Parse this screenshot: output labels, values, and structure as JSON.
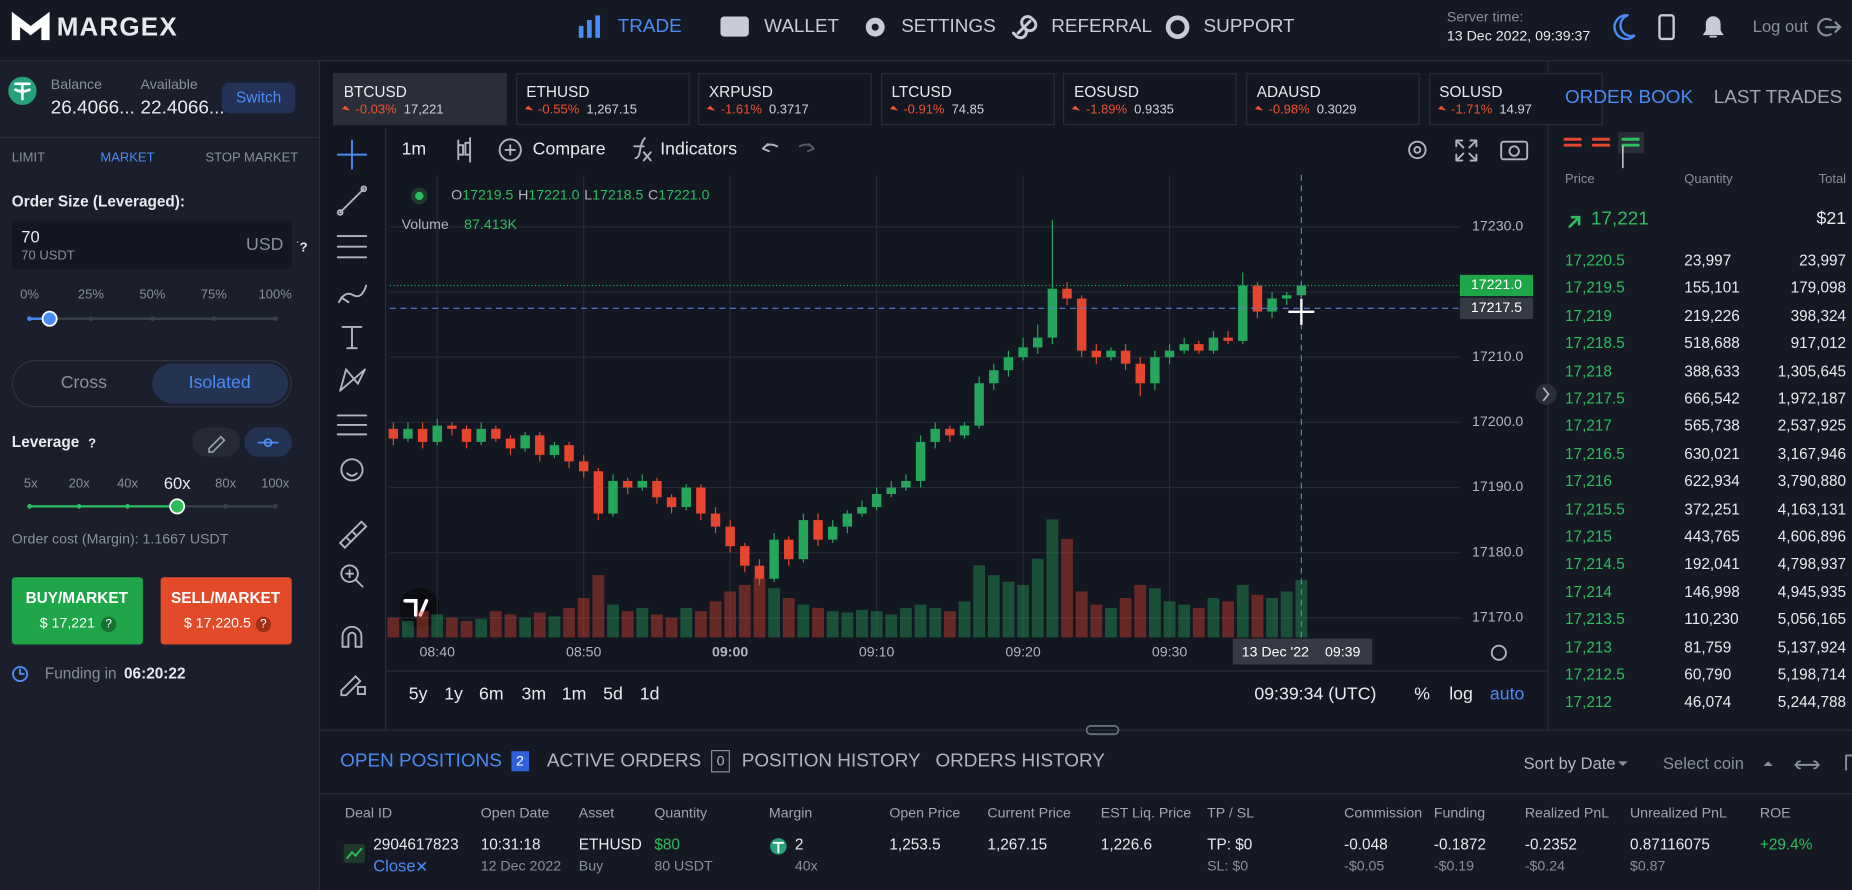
{
  "header": {
    "logo": "MARGEX",
    "nav": [
      "TRADE",
      "WALLET",
      "SETTINGS",
      "REFERRAL",
      "SUPPORT"
    ],
    "server_time_label": "Server time:",
    "server_time": "13 Dec 2022, 09:39:37",
    "logout": "Log out"
  },
  "sidebar": {
    "balance_label": "Balance",
    "balance": "26.4066...",
    "available_label": "Available",
    "available": "22.4066...",
    "switch": "Switch",
    "order_tabs": [
      "LIMIT",
      "MARKET",
      "STOP MARKET"
    ],
    "order_size_label": "Order Size (Leveraged):",
    "order_size": "70",
    "order_size_sub": "70 USDT",
    "currency": "USD",
    "help": "?",
    "size_marks": [
      "0%",
      "25%",
      "50%",
      "75%",
      "100%"
    ],
    "margin_modes": [
      "Cross",
      "Isolated"
    ],
    "leverage_label": "Leverage",
    "leverage_marks": [
      "5x",
      "20x",
      "40x",
      "60x",
      "80x",
      "100x"
    ],
    "order_cost": "Order cost (Margin): 1.1667 USDT",
    "buy_label": "BUY/MARKET",
    "buy_price": "$ 17,221",
    "sell_label": "SELL/MARKET",
    "sell_price": "$ 17,220.5",
    "funding_label": "Funding in",
    "funding_time": "06:20:22"
  },
  "tickers": [
    {
      "symbol": "BTCUSD",
      "change": "-0.03%",
      "price": "17,221"
    },
    {
      "symbol": "ETHUSD",
      "change": "-0.55%",
      "price": "1,267.15"
    },
    {
      "symbol": "XRPUSD",
      "change": "-1.61%",
      "price": "0.3717"
    },
    {
      "symbol": "LTCUSD",
      "change": "-0.91%",
      "price": "74.85"
    },
    {
      "symbol": "EOSUSD",
      "change": "-1.89%",
      "price": "0.9335"
    },
    {
      "symbol": "ADAUSD",
      "change": "-0.98%",
      "price": "0.3029"
    },
    {
      "symbol": "SOLUSD",
      "change": "-1.71%",
      "price": "14.97"
    }
  ],
  "toolbar": {
    "interval": "1m",
    "compare": "Compare",
    "indicators": "Indicators"
  },
  "chart_data": {
    "type": "candlestick",
    "x": [
      "08:37",
      "08:38",
      "08:39",
      "08:40",
      "08:41",
      "08:42",
      "08:43",
      "08:44",
      "08:45",
      "08:46",
      "08:47",
      "08:48",
      "08:49",
      "08:50",
      "08:51",
      "08:52",
      "08:53",
      "08:54",
      "08:55",
      "08:56",
      "08:57",
      "08:58",
      "08:59",
      "09:00",
      "09:01",
      "09:02",
      "09:03",
      "09:04",
      "09:05",
      "09:06",
      "09:07",
      "09:08",
      "09:09",
      "09:10",
      "09:11",
      "09:12",
      "09:13",
      "09:14",
      "09:15",
      "09:16",
      "09:17",
      "09:18",
      "09:19",
      "09:20",
      "09:21",
      "09:22",
      "09:23",
      "09:24",
      "09:25",
      "09:26",
      "09:27",
      "09:28",
      "09:29",
      "09:30",
      "09:31",
      "09:32",
      "09:33",
      "09:34",
      "09:35",
      "09:36",
      "09:37",
      "09:38",
      "09:39"
    ],
    "open": [
      17199,
      17197.5,
      17199,
      17197,
      17199.5,
      17199,
      17197,
      17199,
      17197.5,
      17196,
      17198,
      17195,
      17196.5,
      17194,
      17192.5,
      17186,
      17191,
      17190,
      17191,
      17188.5,
      17187,
      17190,
      17186,
      17184,
      17181,
      17178,
      17176,
      17182,
      17179,
      17185,
      17182,
      17184,
      17186,
      17187,
      17189,
      17190,
      17191,
      17197,
      17199,
      17198,
      17199.5,
      17206,
      17208,
      17210,
      17211.5,
      17213,
      17220.5,
      17219,
      17211,
      17210,
      17211,
      17209,
      17206,
      17210,
      17211,
      17212,
      17211,
      17213,
      17212.5,
      17221,
      17217,
      17219,
      17219.5
    ],
    "high": [
      17200,
      17200,
      17200,
      17200.5,
      17200,
      17199.5,
      17200,
      17199.5,
      17198,
      17198.5,
      17198.5,
      17197,
      17197,
      17195,
      17193,
      17192,
      17191.5,
      17192,
      17191.5,
      17189,
      17190.5,
      17190.5,
      17187,
      17185,
      17181.5,
      17179,
      17183,
      17182.5,
      17186,
      17186,
      17185,
      17186.5,
      17188,
      17190,
      17191,
      17192,
      17198,
      17200,
      17199.5,
      17200,
      17207,
      17209,
      17211,
      17213,
      17215,
      17231,
      17221.5,
      17219.5,
      17212,
      17211.5,
      17212,
      17210,
      17211,
      17212,
      17213,
      17212.5,
      17214,
      17214,
      17223,
      17221.5,
      17220,
      17220,
      17221
    ],
    "low": [
      17196.5,
      17197,
      17196,
      17196.5,
      17198,
      17196,
      17196.5,
      17197,
      17195,
      17195.5,
      17194,
      17194.5,
      17193,
      17191.5,
      17185,
      17185.5,
      17189,
      17189.5,
      17187.5,
      17186,
      17186.5,
      17185,
      17183,
      17180,
      17177,
      17175,
      17175.5,
      17178,
      17178.5,
      17181,
      17181.5,
      17183,
      17185.5,
      17186.5,
      17188.5,
      17189.5,
      17190,
      17196,
      17197,
      17197.5,
      17199,
      17205,
      17207,
      17209.5,
      17210.5,
      17212,
      17218,
      17210,
      17209,
      17209.5,
      17208,
      17204,
      17205,
      17209,
      17210.5,
      17210.5,
      17210.5,
      17212,
      17212,
      17216,
      17216,
      17218,
      17218.5
    ],
    "close": [
      17197.5,
      17199,
      17197,
      17199.5,
      17199,
      17197,
      17199,
      17197.5,
      17196,
      17198,
      17195,
      17196.5,
      17194,
      17192.5,
      17186,
      17191,
      17190,
      17191,
      17188.5,
      17187,
      17190,
      17186,
      17184,
      17181,
      17178,
      17176,
      17182,
      17179,
      17185,
      17182,
      17184,
      17186,
      17187,
      17189,
      17190,
      17191,
      17197,
      17199,
      17198,
      17199.5,
      17206,
      17208,
      17210,
      17211.5,
      17213,
      17220.5,
      17219,
      17211,
      17210,
      17211,
      17209,
      17206,
      17210,
      17211,
      17212,
      17211,
      17213,
      17212.5,
      17221,
      17217,
      17219,
      17219.5,
      17221
    ],
    "volume": [
      30,
      25,
      40,
      35,
      30,
      25,
      28,
      40,
      35,
      30,
      38,
      32,
      45,
      60,
      95,
      50,
      40,
      45,
      35,
      30,
      45,
      40,
      55,
      70,
      80,
      90,
      75,
      60,
      50,
      45,
      40,
      38,
      42,
      40,
      35,
      45,
      50,
      45,
      40,
      55,
      110,
      95,
      85,
      80,
      120,
      180,
      150,
      70,
      50,
      45,
      60,
      80,
      75,
      55,
      50,
      45,
      60,
      55,
      80,
      65,
      60,
      70,
      87.413
    ],
    "up_color": "#26a65b",
    "down_color": "#e6462d",
    "ylim": [
      17167,
      17238
    ],
    "yticks": [
      {
        "value": 17230,
        "label": "17230.0"
      },
      {
        "value": 17220,
        "label": "17220.0"
      },
      {
        "value": 17210,
        "label": "17210.0"
      },
      {
        "value": 17200,
        "label": "17200.0"
      },
      {
        "value": 17190,
        "label": "17190.0"
      },
      {
        "value": 17180,
        "label": "17180.0"
      },
      {
        "value": 17170,
        "label": "17170.0"
      }
    ],
    "xticks": [
      "08:40",
      "08:50",
      "09:00",
      "09:10",
      "09:20",
      "09:30"
    ],
    "grid": true,
    "ohlc_legend": [
      {
        "key": "O",
        "value": "17219.5"
      },
      {
        "key": "H",
        "value": "17221.0"
      },
      {
        "key": "L",
        "value": "17218.5"
      },
      {
        "key": "C",
        "value": "17221.0"
      }
    ],
    "volume_label": "Volume",
    "volume_value": "87.413K",
    "last_price": {
      "value": 17221,
      "label": "17221.0"
    },
    "crosshair_price": 17217.5,
    "crosshair_date": "13 Dec '22",
    "crosshair_time": "09:39"
  },
  "chart_footer": {
    "ranges": [
      "5y",
      "1y",
      "6m",
      "3m",
      "1m",
      "5d",
      "1d"
    ],
    "clock": "09:39:34 (UTC)",
    "options": [
      "%",
      "log",
      "auto"
    ]
  },
  "order_book": {
    "tabs": [
      "ORDER BOOK",
      "LAST TRADES"
    ],
    "columns": [
      "Price",
      "Quantity",
      "Total"
    ],
    "last_price": "17,221",
    "last_total": "$21",
    "rows": [
      [
        "17,220.5",
        "23,997",
        "23,997"
      ],
      [
        "17,219.5",
        "155,101",
        "179,098"
      ],
      [
        "17,219",
        "219,226",
        "398,324"
      ],
      [
        "17,218.5",
        "518,688",
        "917,012"
      ],
      [
        "17,218",
        "388,633",
        "1,305,645"
      ],
      [
        "17,217.5",
        "666,542",
        "1,972,187"
      ],
      [
        "17,217",
        "565,738",
        "2,537,925"
      ],
      [
        "17,216.5",
        "630,021",
        "3,167,946"
      ],
      [
        "17,216",
        "622,934",
        "3,790,880"
      ],
      [
        "17,215.5",
        "372,251",
        "4,163,131"
      ],
      [
        "17,215",
        "443,765",
        "4,606,896"
      ],
      [
        "17,214.5",
        "192,041",
        "4,798,937"
      ],
      [
        "17,214",
        "146,998",
        "4,945,935"
      ],
      [
        "17,213.5",
        "110,230",
        "5,056,165"
      ],
      [
        "17,213",
        "81,759",
        "5,137,924"
      ],
      [
        "17,212.5",
        "60,790",
        "5,198,714"
      ],
      [
        "17,212",
        "46,074",
        "5,244,788"
      ]
    ]
  },
  "positions": {
    "tabs": [
      {
        "label": "OPEN POSITIONS",
        "count": "2"
      },
      {
        "label": "ACTIVE ORDERS",
        "count": "0"
      },
      {
        "label": "POSITION HISTORY"
      },
      {
        "label": "ORDERS HISTORY"
      }
    ],
    "sort": "Sort by Date",
    "select_coin": "Select coin",
    "columns": [
      "Deal ID",
      "Open Date",
      "Asset",
      "Quantity",
      "Margin",
      "Open Price",
      "Current Price",
      "EST Liq. Price",
      "TP / SL",
      "Commission",
      "Funding",
      "Realized PnL",
      "Unrealized PnL",
      "ROE"
    ],
    "rows": [
      [
        {
          "main": "2904617823",
          "sub": "Close"
        },
        {
          "main": "10:31:18",
          "sub": "12 Dec 2022"
        },
        {
          "main": "ETHUSD",
          "sub": "Buy"
        },
        {
          "main": "$80",
          "sub": "80 USDT"
        },
        {
          "main": "2",
          "sub": "40x"
        },
        {
          "main": "1,253.5"
        },
        {
          "main": "1,267.15"
        },
        {
          "main": "1,226.6"
        },
        {
          "main": "TP: $0",
          "sub": "SL: $0"
        },
        {
          "main": "-0.048",
          "sub": "-$0.05"
        },
        {
          "main": "-0.1872",
          "sub": "-$0.19"
        },
        {
          "main": "-0.2352",
          "sub": "-$0.24"
        },
        {
          "main": "0.87116075",
          "sub": "$0.87"
        },
        {
          "main": "+29.4%"
        }
      ]
    ]
  }
}
